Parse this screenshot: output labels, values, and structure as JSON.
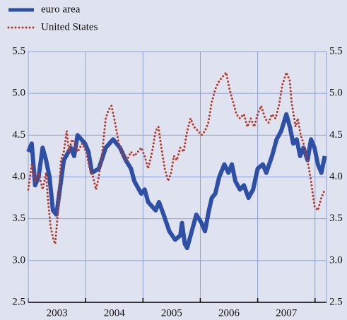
{
  "chart_data": {
    "type": "line",
    "xlim": [
      2003,
      2008.2
    ],
    "xticks": [
      {
        "value": 2003.5,
        "label": "2003"
      },
      {
        "value": 2004.5,
        "label": "2004"
      },
      {
        "value": 2005.5,
        "label": "2005"
      },
      {
        "value": 2006.5,
        "label": "2006"
      },
      {
        "value": 2007.5,
        "label": "2007"
      }
    ],
    "xgrid": [
      2003,
      2004,
      2005,
      2006,
      2007,
      2008
    ],
    "ylim": [
      2.5,
      5.5
    ],
    "yticks": [
      2.5,
      {
        "value": 3,
        "label": "3.0"
      },
      3.5,
      {
        "value": 4,
        "label": "4.0"
      },
      4.5,
      {
        "value": 5,
        "label": "5.0"
      },
      5.5
    ],
    "y2lim": [
      2.5,
      5.5
    ],
    "y2ticks": [
      2.5,
      {
        "value": 3,
        "label": "3.0"
      },
      3.5,
      {
        "value": 4,
        "label": "4.0"
      },
      4.5,
      {
        "value": 5,
        "label": "5.0"
      },
      5.5
    ],
    "grid": true,
    "legend": "top-left",
    "series": [
      {
        "name": "euro area",
        "color": "#2e4fa6",
        "line_style": "solid",
        "x": [
          2003,
          2003.06,
          2003.12,
          2003.18,
          2003.25,
          2003.31,
          2003.37,
          2003.43,
          2003.49,
          2003.62,
          2003.74,
          2003.8,
          2003.86,
          2003.99,
          2004.05,
          2004.11,
          2004.23,
          2004.35,
          2004.48,
          2004.6,
          2004.7,
          2004.79,
          2004.85,
          2004.97,
          2005.03,
          2005.09,
          2005.22,
          2005.28,
          2005.36,
          2005.46,
          2005.56,
          2005.65,
          2005.68,
          2005.73,
          2005.77,
          2005.83,
          2005.93,
          2006.02,
          2006.08,
          2006.15,
          2006.2,
          2006.26,
          2006.33,
          2006.42,
          2006.49,
          2006.55,
          2006.61,
          2006.69,
          2006.76,
          2006.84,
          2006.92,
          2007.0,
          2007.09,
          2007.15,
          2007.25,
          2007.33,
          2007.41,
          2007.5,
          2007.56,
          2007.62,
          2007.68,
          2007.74,
          2007.8,
          2007.87,
          2007.93,
          2007.99,
          2008.05,
          2008.11,
          2008.17
        ],
        "values": [
          4.3,
          4.4,
          3.9,
          4.0,
          4.35,
          4.2,
          4.0,
          3.6,
          3.55,
          4.2,
          4.35,
          4.25,
          4.5,
          4.4,
          4.3,
          4.05,
          4.1,
          4.35,
          4.45,
          4.35,
          4.2,
          4.1,
          3.95,
          3.8,
          3.85,
          3.7,
          3.6,
          3.7,
          3.55,
          3.35,
          3.25,
          3.3,
          3.45,
          3.2,
          3.15,
          3.3,
          3.55,
          3.45,
          3.35,
          3.6,
          3.75,
          3.8,
          4.0,
          4.15,
          4.05,
          4.15,
          3.95,
          3.85,
          3.9,
          3.75,
          3.85,
          4.1,
          4.15,
          4.05,
          4.25,
          4.45,
          4.55,
          4.75,
          4.6,
          4.4,
          4.45,
          4.25,
          4.35,
          4.2,
          4.45,
          4.35,
          4.15,
          4.05,
          4.25
        ]
      },
      {
        "name": "United States",
        "color": "#b2392c",
        "line_style": "dotted",
        "x": [
          2003,
          2003.06,
          2003.12,
          2003.18,
          2003.25,
          2003.31,
          2003.34,
          2003.39,
          2003.44,
          2003.47,
          2003.52,
          2003.57,
          2003.62,
          2003.67,
          2003.71,
          2003.76,
          2003.81,
          2003.86,
          2003.94,
          2004.01,
          2004.07,
          2004.13,
          2004.18,
          2004.23,
          2004.29,
          2004.35,
          2004.4,
          2004.45,
          2004.5,
          2004.58,
          2004.66,
          2004.72,
          2004.79,
          2004.85,
          2004.91,
          2004.97,
          2005.03,
          2005.09,
          2005.16,
          2005.22,
          2005.27,
          2005.32,
          2005.38,
          2005.44,
          2005.49,
          2005.54,
          2005.59,
          2005.65,
          2005.71,
          2005.77,
          2005.83,
          2005.89,
          2005.96,
          2006.02,
          2006.08,
          2006.14,
          2006.2,
          2006.26,
          2006.33,
          2006.39,
          2006.45,
          2006.51,
          2006.57,
          2006.63,
          2006.69,
          2006.76,
          2006.82,
          2006.88,
          2006.94,
          2007.0,
          2007.06,
          2007.13,
          2007.19,
          2007.25,
          2007.31,
          2007.37,
          2007.43,
          2007.5,
          2007.56,
          2007.59,
          2007.66,
          2007.7,
          2007.75,
          2007.8,
          2007.87,
          2007.93,
          2007.99,
          2008.05,
          2008.11,
          2008.17
        ],
        "values": [
          3.85,
          4.15,
          3.95,
          4.05,
          3.85,
          4.05,
          3.75,
          3.4,
          3.25,
          3.2,
          3.6,
          4.2,
          4.3,
          4.55,
          4.3,
          4.45,
          4.4,
          4.3,
          4.4,
          4.3,
          4.1,
          4.0,
          3.85,
          4.0,
          4.3,
          4.7,
          4.8,
          4.85,
          4.7,
          4.4,
          4.25,
          4.2,
          4.3,
          4.25,
          4.3,
          4.35,
          4.25,
          4.1,
          4.3,
          4.55,
          4.6,
          4.35,
          4.1,
          3.95,
          4.05,
          4.25,
          4.2,
          4.35,
          4.3,
          4.55,
          4.7,
          4.6,
          4.55,
          4.5,
          4.55,
          4.65,
          4.9,
          5.05,
          5.15,
          5.2,
          5.25,
          5.05,
          4.9,
          4.75,
          4.7,
          4.75,
          4.6,
          4.7,
          4.6,
          4.75,
          4.85,
          4.7,
          4.65,
          4.75,
          4.7,
          4.85,
          5.1,
          5.25,
          5.15,
          4.9,
          4.6,
          4.7,
          4.5,
          4.4,
          4.2,
          3.95,
          3.65,
          3.6,
          3.75,
          3.85
        ]
      }
    ]
  }
}
